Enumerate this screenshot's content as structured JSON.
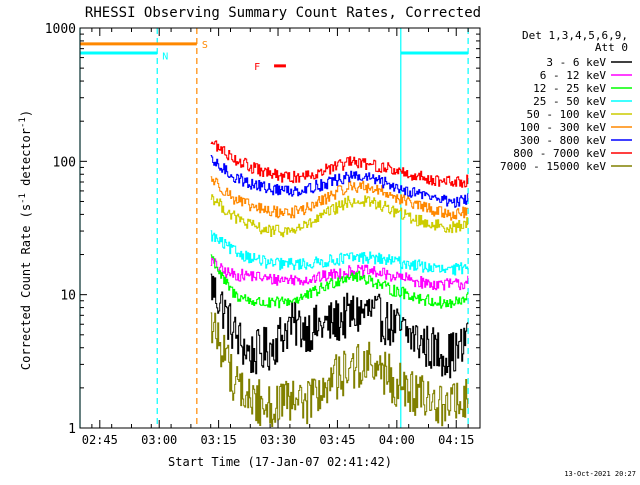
{
  "chart_data": {
    "type": "line",
    "title": "RHESSI Observing Summary Count Rates, Corrected",
    "xlabel": "Start Time (17-Jan-07 02:41:42)",
    "ylabel": "Corrected Count Rate (s⁻¹ detector⁻¹)",
    "ylabel_main": "Corrected Count Rate (s",
    "ylabel_exp1": "-1",
    "ylabel_mid": " detector",
    "ylabel_exp2": "-1",
    "ylabel_end": ")",
    "x_axis_minutes": [
      -3,
      98
    ],
    "x_ticks": [
      {
        "label": "02:45",
        "minute": 2
      },
      {
        "label": "03:00",
        "minute": 17
      },
      {
        "label": "03:15",
        "minute": 32
      },
      {
        "label": "03:30",
        "minute": 47
      },
      {
        "label": "03:45",
        "minute": 62
      },
      {
        "label": "04:00",
        "minute": 77
      },
      {
        "label": "04:15",
        "minute": 92
      }
    ],
    "y_scale": "log",
    "y_range": [
      1,
      1000
    ],
    "y_tick_labels": [
      {
        "label": "1",
        "value": 1
      },
      {
        "label": "10",
        "value": 10
      },
      {
        "label": "100",
        "value": 100
      },
      {
        "label": "1000",
        "value": 1000
      }
    ],
    "legend_header": [
      "Det 1,3,4,5,6,9,",
      "Att 0"
    ],
    "legend_placement": "right",
    "data_start_minute": 30,
    "data_end_minute": 95,
    "series": [
      {
        "name": "3 - 6 keV",
        "color": "#000000",
        "x": [
          30,
          33,
          36,
          40,
          45,
          50,
          55,
          60,
          65,
          70,
          75,
          80,
          85,
          90,
          94,
          95
        ],
        "y": [
          12,
          8,
          5,
          3.5,
          4,
          6,
          5.5,
          6,
          7,
          7.5,
          6,
          5,
          4,
          3.5,
          4,
          8
        ]
      },
      {
        "name": "6 - 12 keV",
        "color": "#ff00ff",
        "x": [
          30,
          33,
          36,
          40,
          45,
          50,
          55,
          60,
          65,
          70,
          75,
          80,
          85,
          90,
          94,
          95
        ],
        "y": [
          18,
          15,
          14,
          14,
          13,
          13,
          13,
          14,
          15,
          15,
          14,
          13,
          12,
          12,
          12,
          14
        ]
      },
      {
        "name": "12 - 25 keV",
        "color": "#00ff00",
        "x": [
          30,
          33,
          36,
          40,
          45,
          50,
          55,
          60,
          65,
          70,
          75,
          80,
          85,
          90,
          94,
          95
        ],
        "y": [
          20,
          13,
          10,
          9,
          8.5,
          9,
          10,
          12,
          14,
          13,
          11,
          10,
          9,
          8.5,
          9,
          10
        ]
      },
      {
        "name": "25 - 50 keV",
        "color": "#00ffff",
        "x": [
          30,
          33,
          36,
          40,
          45,
          50,
          55,
          60,
          65,
          70,
          75,
          80,
          85,
          90,
          94,
          95
        ],
        "y": [
          28,
          24,
          21,
          19,
          17,
          17,
          17,
          18,
          19,
          19,
          18,
          17,
          16,
          15,
          16,
          17
        ]
      },
      {
        "name": "50 - 100 keV",
        "color": "#cccc00",
        "x": [
          30,
          33,
          36,
          40,
          45,
          50,
          55,
          60,
          65,
          70,
          75,
          80,
          85,
          90,
          94,
          95
        ],
        "y": [
          55,
          45,
          38,
          33,
          30,
          30,
          34,
          42,
          50,
          50,
          44,
          38,
          34,
          32,
          33,
          35
        ]
      },
      {
        "name": "100 - 300 keV",
        "color": "#ff8800",
        "x": [
          30,
          33,
          36,
          40,
          45,
          50,
          55,
          60,
          65,
          70,
          75,
          80,
          85,
          90,
          94,
          95
        ],
        "y": [
          75,
          62,
          52,
          46,
          42,
          41,
          45,
          55,
          65,
          64,
          57,
          49,
          44,
          40,
          41,
          45
        ]
      },
      {
        "name": "300 - 800 keV",
        "color": "#0000ff",
        "x": [
          30,
          33,
          36,
          40,
          45,
          50,
          55,
          60,
          65,
          70,
          75,
          80,
          85,
          90,
          94,
          95
        ],
        "y": [
          100,
          88,
          76,
          68,
          62,
          60,
          63,
          70,
          77,
          75,
          67,
          60,
          55,
          50,
          50,
          55
        ]
      },
      {
        "name": "800 - 7000 keV",
        "color": "#ff0000",
        "x": [
          30,
          33,
          36,
          40,
          45,
          50,
          55,
          60,
          65,
          70,
          75,
          80,
          85,
          90,
          94,
          95
        ],
        "y": [
          140,
          120,
          105,
          90,
          80,
          75,
          80,
          88,
          98,
          95,
          88,
          80,
          74,
          70,
          70,
          75
        ]
      },
      {
        "name": "7000 - 15000 keV",
        "color": "#808000",
        "x": [
          30,
          33,
          36,
          40,
          45,
          50,
          55,
          60,
          65,
          70,
          75,
          80,
          85,
          90,
          94,
          95
        ],
        "y": [
          6,
          4,
          2.2,
          1.6,
          1.5,
          1.5,
          1.6,
          2.2,
          2.8,
          3,
          2.4,
          1.8,
          1.6,
          1.5,
          1.6,
          1.7
        ]
      }
    ],
    "annotations": [
      {
        "label": "N",
        "minute": 16.5,
        "color": "#00ffff"
      },
      {
        "label": "S",
        "minute": 26.5,
        "color": "#ff8800"
      },
      {
        "label": "F",
        "minute": 44.5,
        "color": "#ff0000"
      }
    ],
    "markers": {
      "night_segments": [
        [
          -3,
          16.5
        ],
        [
          78,
          95
        ]
      ],
      "night_level": 650,
      "night_color": "#00ffff",
      "saa_segment": [
        -3,
        26.5
      ],
      "saa_level": 760,
      "saa_color": "#ff8800",
      "flare_segment": [
        46,
        49
      ],
      "flare_level": 520,
      "flare_color": "#ff0000",
      "dashed_lines": [
        {
          "minute": 16.5,
          "color": "#00ffff"
        },
        {
          "minute": 26.5,
          "color": "#ff8800"
        },
        {
          "minute": 95,
          "color": "#00ffff"
        }
      ],
      "solid_lines": [
        {
          "minute": -3,
          "color": "#00ffff"
        },
        {
          "minute": 78,
          "color": "#00ffff"
        }
      ]
    },
    "timestamp": "13-Oct-2021 20:27"
  }
}
